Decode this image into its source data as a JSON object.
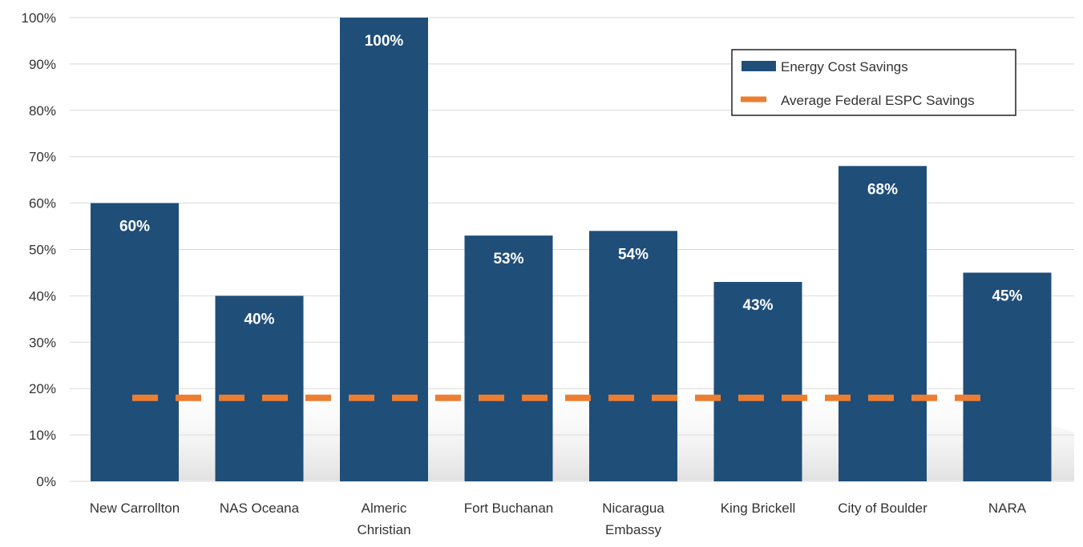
{
  "chart_data": {
    "type": "bar",
    "categories": [
      "New Carrollton",
      "NAS Oceana",
      "Almeric Christian",
      "Fort Buchanan",
      "Nicaragua Embassy",
      "King Brickell",
      "City of Boulder",
      "NARA"
    ],
    "series": [
      {
        "name": "Energy Cost Savings",
        "type": "bar",
        "color": "#1f4e79",
        "values": [
          60,
          40,
          100,
          53,
          54,
          43,
          68,
          45
        ],
        "data_labels": [
          "60%",
          "40%",
          "100%",
          "53%",
          "54%",
          "43%",
          "68%",
          "45%"
        ]
      },
      {
        "name": "Average Federal ESPC Savings",
        "type": "line",
        "style": "dashed",
        "color": "#ed7d31",
        "values": [
          18,
          18,
          18,
          18,
          18,
          18,
          18,
          18
        ]
      }
    ],
    "yticks": [
      "0%",
      "10%",
      "20%",
      "30%",
      "40%",
      "50%",
      "60%",
      "70%",
      "80%",
      "90%",
      "100%"
    ],
    "ylim": [
      0,
      100
    ],
    "grid": true,
    "legend": "top-right",
    "title": "",
    "xlabel": "",
    "ylabel": ""
  }
}
